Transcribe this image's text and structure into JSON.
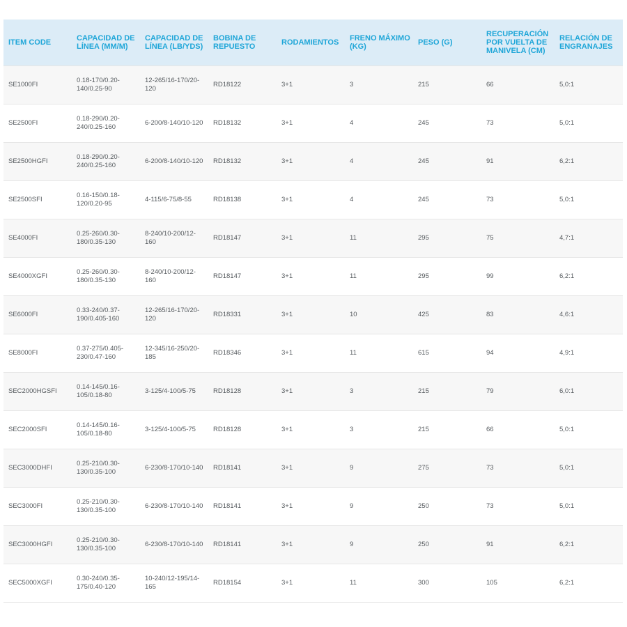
{
  "table": {
    "headers": [
      "ITEM CODE",
      "CAPACIDAD DE LÍNEA (MM/M)",
      "CAPACIDAD DE LÍNEA (LB/YDS)",
      "BOBINA DE REPUESTO",
      "RODAMIENTOS",
      "FRENO MÁXIMO (KG)",
      "PESO (G)",
      "RECUPERACIÓN POR VUELTA DE MANIVELA (CM)",
      "RELACIÓN DE ENGRANAJES"
    ],
    "rows": [
      [
        "SE1000FI",
        "0.18-170/0.20-140/0.25-90",
        "12-265/16-170/20-120",
        "RD18122",
        "3+1",
        "3",
        "215",
        "66",
        "5,0:1"
      ],
      [
        "SE2500FI",
        "0.18-290/0.20-240/0.25-160",
        "6-200/8-140/10-120",
        "RD18132",
        "3+1",
        "4",
        "245",
        "73",
        "5,0:1"
      ],
      [
        "SE2500HGFI",
        "0.18-290/0.20-240/0.25-160",
        "6-200/8-140/10-120",
        "RD18132",
        "3+1",
        "4",
        "245",
        "91",
        "6,2:1"
      ],
      [
        "SE2500SFI",
        "0.16-150/0.18-120/0.20-95",
        "4-115/6-75/8-55",
        "RD18138",
        "3+1",
        "4",
        "245",
        "73",
        "5,0:1"
      ],
      [
        "SE4000FI",
        "0.25-260/0.30-180/0.35-130",
        "8-240/10-200/12-160",
        "RD18147",
        "3+1",
        "11",
        "295",
        "75",
        "4,7:1"
      ],
      [
        "SE4000XGFI",
        "0.25-260/0.30-180/0.35-130",
        "8-240/10-200/12-160",
        "RD18147",
        "3+1",
        "11",
        "295",
        "99",
        "6,2:1"
      ],
      [
        "SE6000FI",
        "0.33-240/0.37-190/0.405-160",
        "12-265/16-170/20-120",
        "RD18331",
        "3+1",
        "10",
        "425",
        "83",
        "4,6:1"
      ],
      [
        "SE8000FI",
        "0.37-275/0.405-230/0.47-160",
        "12-345/16-250/20-185",
        "RD18346",
        "3+1",
        "11",
        "615",
        "94",
        "4,9:1"
      ],
      [
        "SEC2000HGSFI",
        "0.14-145/0.16-105/0.18-80",
        "3-125/4-100/5-75",
        "RD18128",
        "3+1",
        "3",
        "215",
        "79",
        "6,0:1"
      ],
      [
        "SEC2000SFI",
        "0.14-145/0.16-105/0.18-80",
        "3-125/4-100/5-75",
        "RD18128",
        "3+1",
        "3",
        "215",
        "66",
        "5,0:1"
      ],
      [
        "SEC3000DHFI",
        "0.25-210/0.30-130/0.35-100",
        "6-230/8-170/10-140",
        "RD18141",
        "3+1",
        "9",
        "275",
        "73",
        "5,0:1"
      ],
      [
        "SEC3000FI",
        "0.25-210/0.30-130/0.35-100",
        "6-230/8-170/10-140",
        "RD18141",
        "3+1",
        "9",
        "250",
        "73",
        "5,0:1"
      ],
      [
        "SEC3000HGFI",
        "0.25-210/0.30-130/0.35-100",
        "6-230/8-170/10-140",
        "RD18141",
        "3+1",
        "9",
        "250",
        "91",
        "6,2:1"
      ],
      [
        "SEC5000XGFI",
        "0.30-240/0.35-175/0.40-120",
        "10-240/12-195/14-165",
        "RD18154",
        "3+1",
        "11",
        "300",
        "105",
        "6,2:1"
      ]
    ]
  },
  "colors": {
    "header_text": "#1fa6d8",
    "header_bg": "#dcecf7",
    "row_alt_bg": "#f7f7f7",
    "cell_text": "#555a5e"
  }
}
